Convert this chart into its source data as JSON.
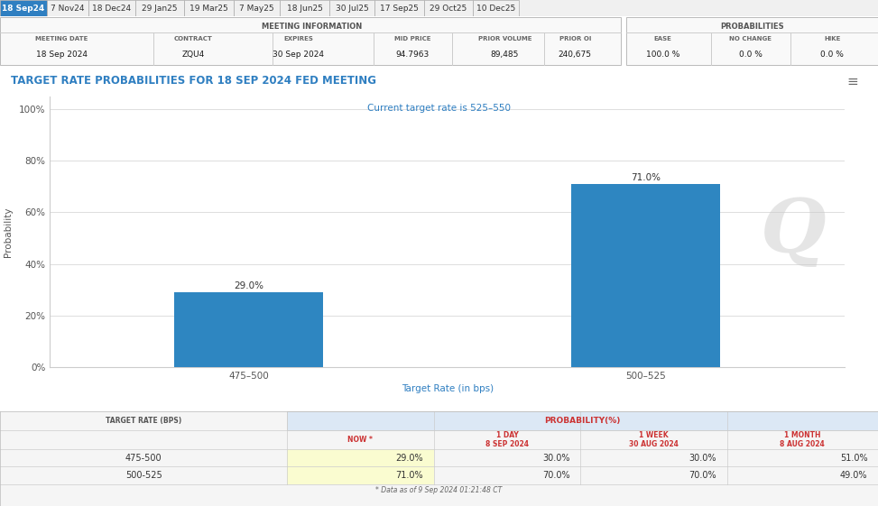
{
  "tabs": [
    "18 Sep24",
    "7 Nov24",
    "18 Dec24",
    "29 Jan25",
    "19 Mar25",
    "7 May25",
    "18 Jun25",
    "30 Jul25",
    "17 Sep25",
    "29 Oct25",
    "10 Dec25"
  ],
  "active_tab": "18 Sep24",
  "tab_bg": "#2f7fc1",
  "tab_text_color": "#ffffff",
  "inactive_tab_bg": "#f0f0f0",
  "inactive_tab_text_color": "#333333",
  "meeting_info_title": "MEETING INFORMATION",
  "probabilities_title": "PROBABILITIES",
  "meeting_date": "18 Sep 2024",
  "contract": "ZQU4",
  "expires": "30 Sep 2024",
  "mid_price": "94.7963",
  "prior_volume": "89,485",
  "prior_oi": "240,675",
  "ease_val": "100.0 %",
  "no_change_val": "0.0 %",
  "hike_val": "0.0 %",
  "chart_title": "TARGET RATE PROBABILITIES FOR 18 SEP 2024 FED MEETING",
  "subtitle": "Current target rate is 525–550",
  "chart_title_color": "#2f7fc1",
  "subtitle_color": "#2f7fc1",
  "ylabel": "Probability",
  "xlabel": "Target Rate (in bps)",
  "xlabel_color": "#2f7fc1",
  "ylabel_color": "#555555",
  "categories": [
    "475–500",
    "500–525"
  ],
  "values": [
    29.0,
    71.0
  ],
  "bar_color": "#2e86c1",
  "bar_labels": [
    "29.0%",
    "71.0%"
  ],
  "yticks": [
    0,
    20,
    40,
    60,
    80,
    100
  ],
  "ytick_labels": [
    "0%",
    "20%",
    "40%",
    "60%",
    "80%",
    "100%"
  ],
  "ylim": [
    0,
    105
  ],
  "grid_color": "#dddddd",
  "bg_color": "#ffffff",
  "chart_bg": "#ffffff",
  "table_now_bg": "#fafcd0",
  "prob_table_title": "PROBABILITY(%)",
  "table_rows": [
    [
      "475-500",
      "29.0%",
      "30.0%",
      "30.0%",
      "51.0%"
    ],
    [
      "500-525",
      "71.0%",
      "70.0%",
      "70.0%",
      "49.0%"
    ]
  ],
  "footer": "* Data as of 9 Sep 2024 01:21:48 CT",
  "watermark": "Q"
}
